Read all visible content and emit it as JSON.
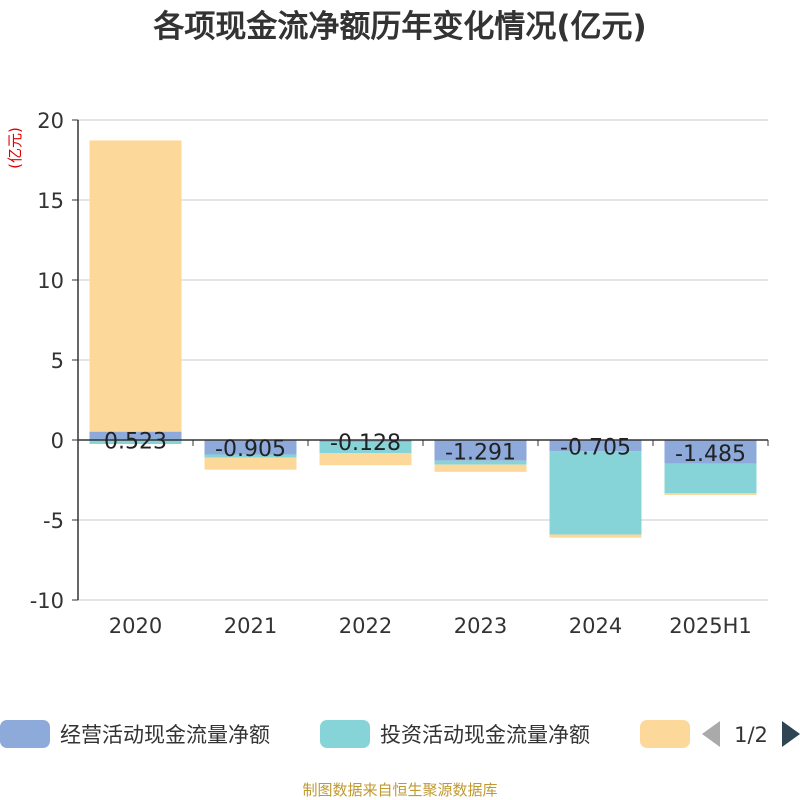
{
  "chart_data": {
    "type": "bar",
    "stacked": true,
    "title": "各项现金流净额历年变化情况(亿元)",
    "ylabel": "(亿元)",
    "categories": [
      "2020",
      "2021",
      "2022",
      "2023",
      "2024",
      "2025H1"
    ],
    "ylim": [
      -10,
      20
    ],
    "yticks": [
      "20",
      "15",
      "10",
      "5",
      "0",
      "-5",
      "-10"
    ],
    "grid": true,
    "legend_position": "bottom",
    "series": [
      {
        "name": "经营活动现金流量净额",
        "color": "#8eaadb",
        "values": [
          0.523,
          -0.905,
          -0.128,
          -1.291,
          -0.705,
          -1.485
        ],
        "labels": [
          "0.523",
          "-0.905",
          "-0.128",
          "-1.291",
          "-0.705",
          "-1.485"
        ]
      },
      {
        "name": "投资活动现金流量净额",
        "color": "#87d4d8",
        "values": [
          -0.25,
          -0.2,
          -0.7,
          -0.25,
          -5.2,
          -1.85
        ]
      },
      {
        "name": "",
        "color": "#fdd89b",
        "values": [
          18.2,
          -0.75,
          -0.75,
          -0.45,
          -0.2,
          -0.1
        ]
      }
    ],
    "legend": {
      "page_indicator": "1/2"
    }
  },
  "source": "制图数据来自恒生聚源数据库"
}
